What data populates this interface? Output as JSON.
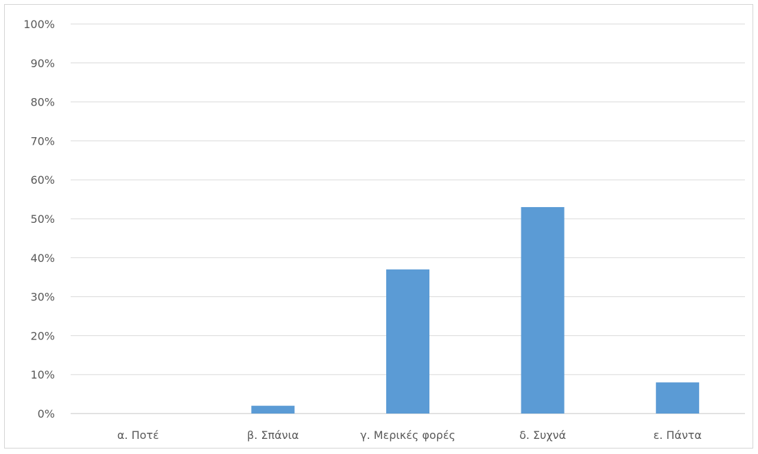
{
  "chart_data": {
    "type": "bar",
    "title": "",
    "xlabel": "",
    "ylabel": "",
    "categories": [
      "α. Ποτέ",
      "β. Σπάνια",
      "γ. Μερικές φορές",
      "δ. Συχνά",
      "ε. Πάντα"
    ],
    "values": [
      0,
      2,
      37,
      53,
      8
    ],
    "ylim": [
      0,
      100
    ],
    "yticks": [
      0,
      10,
      20,
      30,
      40,
      50,
      60,
      70,
      80,
      90,
      100
    ],
    "ytick_labels": [
      "0%",
      "10%",
      "20%",
      "30%",
      "40%",
      "50%",
      "60%",
      "70%",
      "80%",
      "90%",
      "100%"
    ],
    "grid": true,
    "legend": "none",
    "bar_color": "#5b9bd5"
  }
}
